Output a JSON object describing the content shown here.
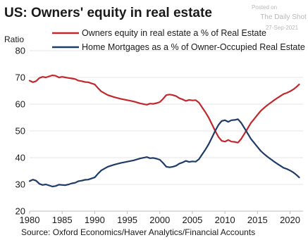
{
  "chart_data": {
    "type": "line",
    "title": "US: Owners' equity in real estate",
    "ylabel": "Ratio",
    "xlabel": "",
    "xlim": [
      1980,
      2022
    ],
    "ylim": [
      20,
      80
    ],
    "x_ticks": [
      1980,
      1985,
      1990,
      1995,
      2000,
      2005,
      2010,
      2015,
      2020
    ],
    "y_ticks": [
      20,
      30,
      40,
      50,
      60,
      70,
      80
    ],
    "grid": "horizontal",
    "legend_position": "top",
    "series": [
      {
        "name": "Owners equity in real estate a % of Real Estate",
        "color": "#c0282d",
        "points": [
          [
            1980.0,
            68.8
          ],
          [
            1980.5,
            68.2
          ],
          [
            1981.0,
            68.6
          ],
          [
            1981.5,
            69.8
          ],
          [
            1982.0,
            70.2
          ],
          [
            1982.5,
            70.0
          ],
          [
            1983.0,
            70.4
          ],
          [
            1983.5,
            70.8
          ],
          [
            1984.0,
            70.6
          ],
          [
            1984.5,
            70.0
          ],
          [
            1985.0,
            70.2
          ],
          [
            1985.5,
            70.0
          ],
          [
            1986.0,
            69.8
          ],
          [
            1986.5,
            69.6
          ],
          [
            1987.0,
            69.4
          ],
          [
            1987.5,
            68.8
          ],
          [
            1988.0,
            68.6
          ],
          [
            1988.5,
            68.3
          ],
          [
            1989.0,
            68.2
          ],
          [
            1989.5,
            67.8
          ],
          [
            1990.0,
            67.4
          ],
          [
            1990.5,
            66.0
          ],
          [
            1991.0,
            64.8
          ],
          [
            1991.5,
            64.1
          ],
          [
            1992.0,
            63.4
          ],
          [
            1993.0,
            62.6
          ],
          [
            1994.0,
            62.0
          ],
          [
            1995.0,
            61.5
          ],
          [
            1996.0,
            61.0
          ],
          [
            1997.0,
            60.3
          ],
          [
            1998.0,
            59.8
          ],
          [
            1998.5,
            60.2
          ],
          [
            1999.0,
            60.1
          ],
          [
            1999.5,
            60.4
          ],
          [
            2000.0,
            60.8
          ],
          [
            2000.5,
            62.0
          ],
          [
            2001.0,
            63.4
          ],
          [
            2001.5,
            63.6
          ],
          [
            2002.0,
            63.4
          ],
          [
            2002.5,
            63.0
          ],
          [
            2003.0,
            62.2
          ],
          [
            2003.5,
            61.8
          ],
          [
            2004.0,
            61.2
          ],
          [
            2004.5,
            61.6
          ],
          [
            2005.0,
            61.4
          ],
          [
            2005.5,
            61.5
          ],
          [
            2006.0,
            60.6
          ],
          [
            2006.5,
            58.8
          ],
          [
            2007.0,
            57.0
          ],
          [
            2007.5,
            55.0
          ],
          [
            2008.0,
            52.5
          ],
          [
            2008.5,
            50.0
          ],
          [
            2009.0,
            47.8
          ],
          [
            2009.5,
            46.3
          ],
          [
            2010.0,
            46.0
          ],
          [
            2010.5,
            46.6
          ],
          [
            2011.0,
            46.0
          ],
          [
            2011.5,
            45.9
          ],
          [
            2012.0,
            45.6
          ],
          [
            2012.5,
            47.0
          ],
          [
            2013.0,
            49.0
          ],
          [
            2013.5,
            51.0
          ],
          [
            2014.0,
            53.0
          ],
          [
            2014.5,
            54.5
          ],
          [
            2015.0,
            56.0
          ],
          [
            2015.5,
            57.5
          ],
          [
            2016.0,
            58.6
          ],
          [
            2016.5,
            59.6
          ],
          [
            2017.0,
            60.5
          ],
          [
            2017.5,
            61.4
          ],
          [
            2018.0,
            62.2
          ],
          [
            2018.5,
            63.0
          ],
          [
            2019.0,
            63.8
          ],
          [
            2019.5,
            64.2
          ],
          [
            2020.0,
            64.8
          ],
          [
            2020.5,
            65.5
          ],
          [
            2021.0,
            66.5
          ],
          [
            2021.4,
            67.4
          ]
        ]
      },
      {
        "name": "Home Mortgages as a % of Owner-Occupied Real Estate",
        "color": "#1f3c68",
        "points": [
          [
            1980.0,
            31.2
          ],
          [
            1980.5,
            31.8
          ],
          [
            1981.0,
            31.4
          ],
          [
            1981.5,
            30.2
          ],
          [
            1982.0,
            29.8
          ],
          [
            1982.5,
            30.0
          ],
          [
            1983.0,
            29.6
          ],
          [
            1983.5,
            29.2
          ],
          [
            1984.0,
            29.4
          ],
          [
            1984.5,
            29.9
          ],
          [
            1985.0,
            29.8
          ],
          [
            1985.5,
            29.7
          ],
          [
            1986.0,
            30.0
          ],
          [
            1986.5,
            30.4
          ],
          [
            1987.0,
            30.6
          ],
          [
            1987.5,
            31.2
          ],
          [
            1988.0,
            31.4
          ],
          [
            1988.5,
            31.7
          ],
          [
            1989.0,
            31.8
          ],
          [
            1989.5,
            32.2
          ],
          [
            1990.0,
            32.6
          ],
          [
            1990.5,
            34.0
          ],
          [
            1991.0,
            35.2
          ],
          [
            1991.5,
            35.9
          ],
          [
            1992.0,
            36.6
          ],
          [
            1993.0,
            37.4
          ],
          [
            1994.0,
            38.0
          ],
          [
            1995.0,
            38.5
          ],
          [
            1996.0,
            39.0
          ],
          [
            1997.0,
            39.7
          ],
          [
            1998.0,
            40.2
          ],
          [
            1998.5,
            39.8
          ],
          [
            1999.0,
            39.9
          ],
          [
            1999.5,
            39.6
          ],
          [
            2000.0,
            39.2
          ],
          [
            2000.5,
            38.0
          ],
          [
            2001.0,
            36.6
          ],
          [
            2001.5,
            36.4
          ],
          [
            2002.0,
            36.6
          ],
          [
            2002.5,
            37.0
          ],
          [
            2003.0,
            37.8
          ],
          [
            2003.5,
            38.2
          ],
          [
            2004.0,
            38.8
          ],
          [
            2004.5,
            38.4
          ],
          [
            2005.0,
            38.6
          ],
          [
            2005.5,
            38.5
          ],
          [
            2006.0,
            39.4
          ],
          [
            2006.5,
            41.2
          ],
          [
            2007.0,
            43.0
          ],
          [
            2007.5,
            45.0
          ],
          [
            2008.0,
            47.5
          ],
          [
            2008.5,
            50.0
          ],
          [
            2009.0,
            52.2
          ],
          [
            2009.5,
            53.7
          ],
          [
            2010.0,
            54.0
          ],
          [
            2010.5,
            53.4
          ],
          [
            2011.0,
            54.0
          ],
          [
            2011.5,
            54.1
          ],
          [
            2012.0,
            54.4
          ],
          [
            2012.5,
            53.0
          ],
          [
            2013.0,
            51.0
          ],
          [
            2013.5,
            49.0
          ],
          [
            2014.0,
            47.0
          ],
          [
            2014.5,
            45.5
          ],
          [
            2015.0,
            44.0
          ],
          [
            2015.5,
            42.5
          ],
          [
            2016.0,
            41.4
          ],
          [
            2016.5,
            40.4
          ],
          [
            2017.0,
            39.5
          ],
          [
            2017.5,
            38.6
          ],
          [
            2018.0,
            37.8
          ],
          [
            2018.5,
            37.0
          ],
          [
            2019.0,
            36.2
          ],
          [
            2019.5,
            35.8
          ],
          [
            2020.0,
            35.2
          ],
          [
            2020.5,
            34.5
          ],
          [
            2021.0,
            33.5
          ],
          [
            2021.4,
            32.6
          ]
        ]
      }
    ],
    "source": "Source: Oxford Economics/Haver Analytics/Financial Accounts"
  },
  "watermark": {
    "line1": "Posted on",
    "line2": "The Daily Shot",
    "line3": "27-Sep-2021"
  }
}
